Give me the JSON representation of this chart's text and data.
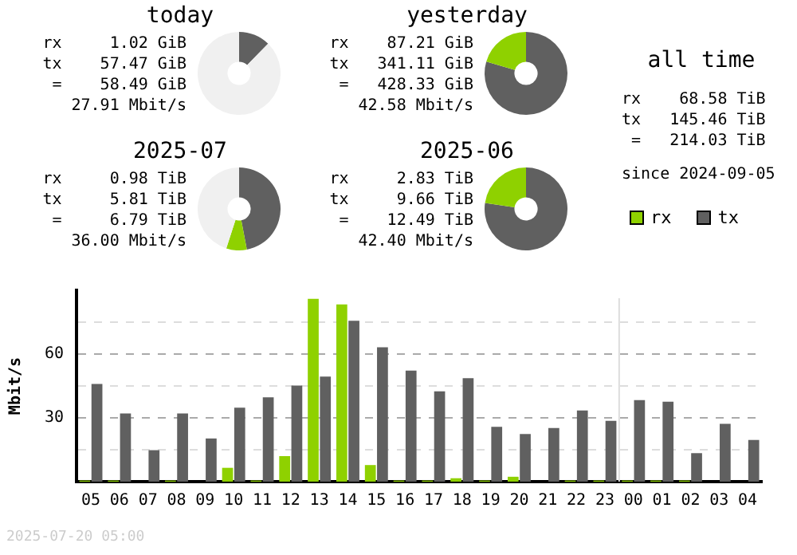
{
  "chart_data": [
    {
      "type": "donut",
      "title": "today",
      "categories": [
        null,
        null,
        null
      ],
      "values": [
        12.3,
        null,
        87.5
      ],
      "colors": [
        "#606060",
        "#8fd100",
        "#f0f0f0"
      ],
      "annotations": [
        "rx     1.02 GiB",
        "tx    57.47 GiB",
        " =    58.49 GiB",
        "27.91 Mbit/s"
      ]
    },
    {
      "type": "donut",
      "title": "yesterday",
      "categories": [
        null,
        null
      ],
      "values": [
        79.6,
        20.4
      ],
      "colors": [
        "#606060",
        "#8fd100"
      ],
      "annotations": [
        "rx    87.21 GiB",
        "tx   341.11 GiB",
        " =   428.33 GiB",
        "42.58 Mbit/s"
      ]
    },
    {
      "type": "donut",
      "title": "2025-07",
      "categories": [
        null,
        null,
        null
      ],
      "values": [
        47,
        8,
        45
      ],
      "colors": [
        "#606060",
        "#8fd100",
        "#f0f0f0"
      ],
      "annotations": [
        "rx     0.98 TiB",
        "tx     5.81 TiB",
        " =     6.79 TiB",
        "36.00 Mbit/s"
      ]
    },
    {
      "type": "donut",
      "title": "2025-06",
      "categories": [
        null,
        null
      ],
      "values": [
        77.3,
        22.7
      ],
      "colors": [
        "#606060",
        "#8fd100"
      ],
      "annotations": [
        "rx     2.83 TiB",
        "tx     9.66 TiB",
        " =    12.49 TiB",
        "42.40 Mbit/s"
      ]
    },
    {
      "type": "other",
      "title": "all time",
      "annotations": [
        "rx    68.58 TiB",
        "tx   145.46 TiB",
        " =   214.03 TiB",
        "since 2024-09-05"
      ]
    },
    {
      "type": "bar",
      "ylabel": "Mbit/s",
      "categories": [
        "05",
        "06",
        "07",
        "08",
        "09",
        "10",
        "11",
        "12",
        "13",
        "14",
        "15",
        "16",
        "17",
        "18",
        "19",
        "20",
        "21",
        "22",
        "23",
        "00",
        "01",
        "02",
        "03",
        "04"
      ],
      "series": [
        {
          "name": "rx",
          "color": "#8fd100",
          "values": [
            0.5,
            0.5,
            0,
            0.5,
            0,
            6.5,
            0.5,
            12,
            86,
            83.3,
            7.8,
            0.5,
            0.5,
            1.6,
            0.5,
            2.3,
            0,
            0.5,
            0.5,
            0.5,
            0.5,
            0.5,
            0,
            0
          ]
        },
        {
          "name": "tx",
          "color": "#606060",
          "values": [
            45.9,
            32.1,
            14.8,
            32.1,
            20.3,
            34.8,
            39.7,
            45.2,
            49.4,
            75.7,
            63.2,
            52.2,
            42.5,
            48.7,
            25.8,
            22.4,
            25.2,
            33.5,
            28.6,
            38.3,
            37.6,
            13.4,
            27.2,
            19.6
          ]
        }
      ],
      "ylim": [
        0,
        90
      ],
      "yticks": [
        {
          "value": 15,
          "label": null
        },
        30,
        {
          "value": 45,
          "label": null
        },
        60,
        {
          "value": 75,
          "label": null
        }
      ],
      "grid": "y",
      "legend": "top right",
      "ref_lines": [
        {
          "axis": "x",
          "value": "00",
          "color": "#dddddd"
        }
      ],
      "annotations": [
        "2025-07-20 05:00"
      ]
    }
  ]
}
